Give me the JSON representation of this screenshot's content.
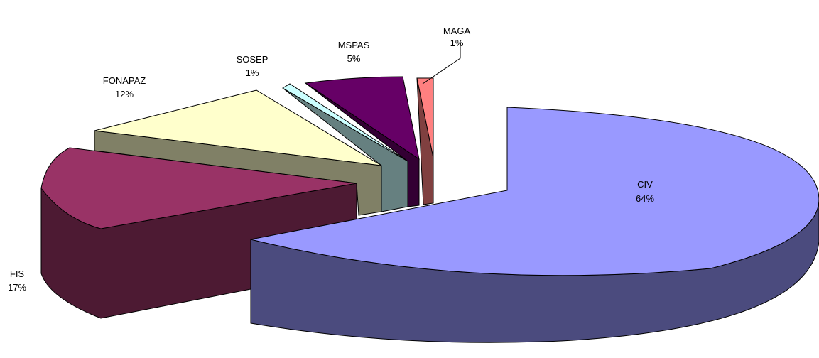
{
  "chart_data": {
    "type": "pie",
    "style": "3d-exploded",
    "slices": [
      {
        "name": "CIV",
        "pct": "64%",
        "value": 64,
        "color": "#9999FF",
        "side_color": "#4B4B7E"
      },
      {
        "name": "FIS",
        "pct": "17%",
        "value": 17,
        "color": "#993366",
        "side_color": "#4D1A33"
      },
      {
        "name": "FONAPAZ",
        "pct": "12%",
        "value": 12,
        "color": "#FFFFCC",
        "side_color": "#808066"
      },
      {
        "name": "SOSEP",
        "pct": "1%",
        "value": 1,
        "color": "#CCFFFF",
        "side_color": "#668080"
      },
      {
        "name": "MSPAS",
        "pct": "5%",
        "value": 5,
        "color": "#660066",
        "side_color": "#330033"
      },
      {
        "name": "MAGA",
        "pct": "1%",
        "value": 1,
        "color": "#FF8080",
        "side_color": "#804040"
      }
    ]
  }
}
